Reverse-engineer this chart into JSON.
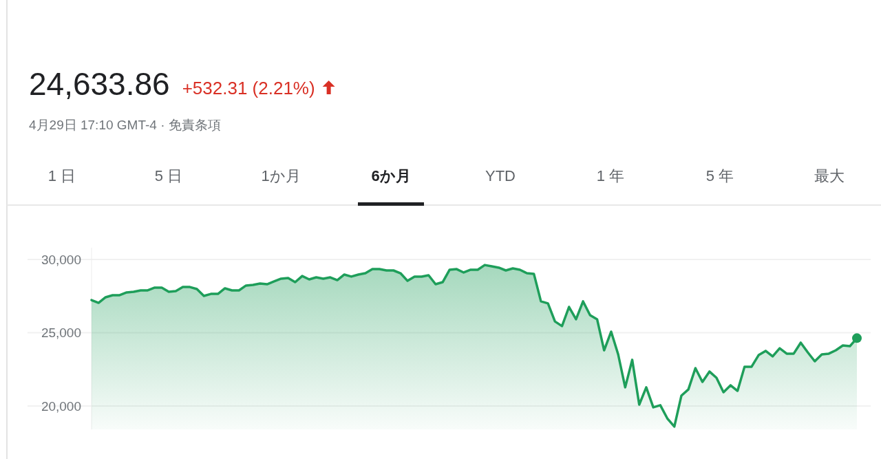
{
  "chart_data": {
    "type": "area",
    "title": "24,633.86",
    "subtitle": "+532.31 (2.21%)",
    "annotations": [
      "4月29日 17:10 GMT-4 · 免責条項",
      "1 日",
      "5 日",
      "1か月",
      "6か月",
      "YTD",
      "1 年",
      "5 年",
      "最大"
    ],
    "categories": [
      null,
      null,
      null,
      null,
      null,
      null,
      null,
      null,
      null,
      null,
      null,
      null,
      null,
      null,
      null,
      null,
      null,
      null,
      null,
      null,
      null,
      null,
      null,
      null,
      null,
      null,
      null,
      null,
      null,
      null,
      null,
      null,
      null,
      null,
      null,
      null,
      null,
      null,
      null,
      null,
      null,
      null,
      null,
      null,
      null,
      null,
      null,
      null,
      null,
      null,
      null,
      null,
      null,
      null,
      null,
      null,
      null,
      null,
      null,
      null,
      null,
      null,
      null,
      null,
      null,
      null,
      null,
      null,
      null,
      null,
      null,
      null,
      null,
      null,
      null,
      null,
      null,
      null,
      null,
      null,
      null,
      null,
      null,
      null,
      null,
      null,
      null,
      null,
      null,
      null,
      null,
      null,
      null,
      null,
      null,
      null,
      null,
      null,
      null,
      null,
      null,
      null,
      null,
      null,
      null,
      null,
      null,
      null,
      null,
      null
    ],
    "series": [
      {
        "type": "area",
        "color": "#1e9e5a",
        "values": [
          27230,
          27040,
          27420,
          27560,
          27560,
          27750,
          27790,
          27890,
          27890,
          28080,
          28080,
          27790,
          27840,
          28120,
          28120,
          27980,
          27510,
          27650,
          27650,
          28030,
          27890,
          27890,
          28220,
          28260,
          28360,
          28310,
          28500,
          28690,
          28730,
          28450,
          28870,
          28640,
          28780,
          28690,
          28780,
          28590,
          28970,
          28830,
          28970,
          29060,
          29340,
          29340,
          29250,
          29250,
          29060,
          28540,
          28830,
          28830,
          28920,
          28310,
          28450,
          29300,
          29340,
          29110,
          29300,
          29300,
          29620,
          29530,
          29440,
          29250,
          29390,
          29300,
          29060,
          29010,
          27140,
          27000,
          25770,
          25450,
          26760,
          25920,
          27140,
          26200,
          25920,
          23800,
          25070,
          23520,
          21270,
          23150,
          20090,
          21270,
          19910,
          20050,
          19150,
          18590,
          20700,
          21130,
          22580,
          21640,
          22350,
          21920,
          20940,
          21410,
          21030,
          22680,
          22680,
          23470,
          23760,
          23380,
          23940,
          23570,
          23570,
          24320,
          23660,
          23050,
          23520,
          23570,
          23800,
          24130,
          24080,
          24630
        ]
      },
      {
        "type": "scatter",
        "color": "#1e9e5a",
        "values": [
          null,
          null,
          null,
          null,
          null,
          null,
          null,
          null,
          null,
          null,
          null,
          null,
          null,
          null,
          null,
          null,
          null,
          null,
          null,
          null,
          null,
          null,
          null,
          null,
          null,
          null,
          null,
          null,
          null,
          null,
          null,
          null,
          null,
          null,
          null,
          null,
          null,
          null,
          null,
          null,
          null,
          null,
          null,
          null,
          null,
          null,
          null,
          null,
          null,
          null,
          null,
          null,
          null,
          null,
          null,
          null,
          null,
          null,
          null,
          null,
          null,
          null,
          null,
          null,
          null,
          null,
          null,
          null,
          null,
          null,
          null,
          null,
          null,
          null,
          null,
          null,
          null,
          null,
          null,
          null,
          null,
          null,
          null,
          null,
          null,
          null,
          null,
          null,
          null,
          null,
          null,
          null,
          null,
          null,
          null,
          null,
          null,
          null,
          null,
          null,
          null,
          null,
          null,
          null,
          null,
          null,
          null,
          null,
          null,
          24630
        ]
      }
    ],
    "ylim": [
      18400,
      30800
    ],
    "yticks": [
      {
        "value": 20000,
        "label": "20,000"
      },
      {
        "value": 25000,
        "label": "25,000"
      },
      {
        "value": 30000,
        "label": "30,000"
      }
    ],
    "grid": "y"
  }
}
